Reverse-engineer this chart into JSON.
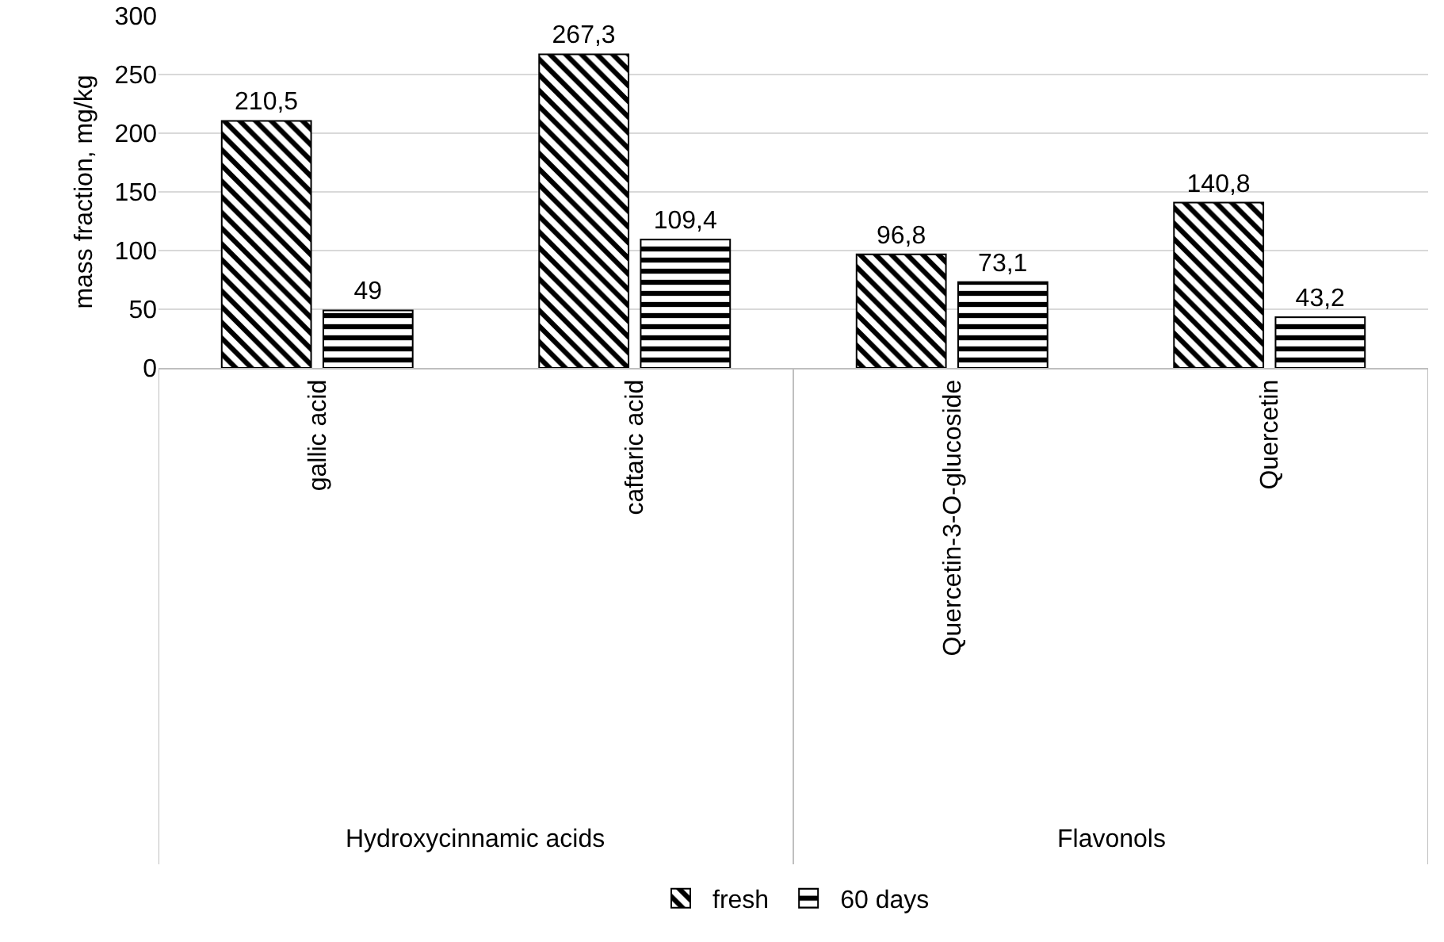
{
  "chart_data": {
    "type": "bar",
    "ylabel": "mass fraction, mg/kg",
    "categories": [
      "gallic acid",
      "caftaric acid",
      "Quercetin-3-O-glucoside",
      "Quercetin"
    ],
    "series": [
      {
        "name": "fresh",
        "color": "#000000",
        "values": [
          210.5,
          267.3,
          96.8,
          140.8
        ],
        "value_labels": [
          "210,5",
          "267,3",
          "96,8",
          "140,8"
        ]
      },
      {
        "name": "60 days",
        "color": "#000000",
        "values": [
          49,
          109.4,
          73.1,
          43.2
        ],
        "value_labels": [
          "49",
          "109,4",
          "73,1",
          "43,2"
        ]
      }
    ],
    "annotations": [
      "Hydroxycinnamic acids",
      "Flavonols"
    ],
    "ylim": [
      0,
      300
    ],
    "yticks": [
      0,
      50,
      100,
      150,
      200,
      250,
      300
    ],
    "grid": "y",
    "legend": "bottom"
  }
}
